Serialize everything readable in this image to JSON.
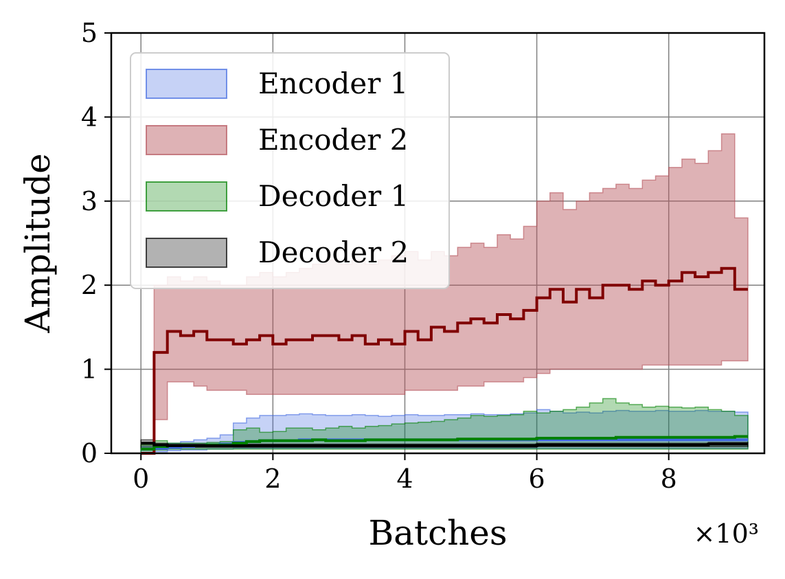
{
  "chart_data": {
    "type": "line",
    "title": "",
    "xlabel": "Batches",
    "ylabel": "Amplitude",
    "x_multiplier_label": "×10³",
    "xlim": [
      -0.45,
      9.45
    ],
    "ylim": [
      0,
      5
    ],
    "xticks": [
      0,
      2,
      4,
      6,
      8
    ],
    "xtick_labels": [
      "0",
      "2",
      "4",
      "6",
      "8"
    ],
    "yticks": [
      0,
      1,
      2,
      3,
      4,
      5
    ],
    "ytick_labels": [
      "0",
      "1",
      "2",
      "3",
      "4",
      "5"
    ],
    "grid": true,
    "legend_position": "top-left",
    "x": [
      0.0,
      0.2,
      0.4,
      0.6,
      0.8,
      1.0,
      1.2,
      1.4,
      1.6,
      1.8,
      2.0,
      2.2,
      2.4,
      2.6,
      2.8,
      3.0,
      3.2,
      3.4,
      3.6,
      3.8,
      4.0,
      4.2,
      4.4,
      4.6,
      4.8,
      5.0,
      5.2,
      5.4,
      5.6,
      5.8,
      6.0,
      6.2,
      6.4,
      6.6,
      6.8,
      7.0,
      7.2,
      7.4,
      7.6,
      7.8,
      8.0,
      8.2,
      8.4,
      8.6,
      8.8,
      9.0
    ],
    "series": [
      {
        "name": "Encoder 1",
        "color": "#4169e1",
        "fill_alpha": 0.3,
        "mean": [
          0.05,
          0.06,
          0.07,
          0.08,
          0.09,
          0.1,
          0.11,
          0.13,
          0.14,
          0.15,
          0.15,
          0.15,
          0.16,
          0.16,
          0.16,
          0.16,
          0.16,
          0.16,
          0.16,
          0.16,
          0.16,
          0.16,
          0.16,
          0.16,
          0.16,
          0.16,
          0.16,
          0.16,
          0.16,
          0.16,
          0.16,
          0.16,
          0.16,
          0.16,
          0.16,
          0.16,
          0.16,
          0.16,
          0.16,
          0.16,
          0.16,
          0.16,
          0.16,
          0.16,
          0.16,
          0.16
        ],
        "upper": [
          0.08,
          0.1,
          0.12,
          0.14,
          0.16,
          0.18,
          0.22,
          0.36,
          0.42,
          0.45,
          0.45,
          0.46,
          0.47,
          0.46,
          0.45,
          0.45,
          0.46,
          0.45,
          0.44,
          0.45,
          0.46,
          0.45,
          0.45,
          0.46,
          0.46,
          0.47,
          0.46,
          0.46,
          0.47,
          0.48,
          0.52,
          0.5,
          0.48,
          0.49,
          0.48,
          0.5,
          0.51,
          0.5,
          0.5,
          0.51,
          0.5,
          0.5,
          0.51,
          0.5,
          0.5,
          0.49
        ],
        "lower": [
          0.0,
          0.02,
          0.03,
          0.04,
          0.04,
          0.05,
          0.05,
          0.06,
          0.06,
          0.06,
          0.06,
          0.06,
          0.06,
          0.06,
          0.06,
          0.06,
          0.06,
          0.06,
          0.06,
          0.06,
          0.06,
          0.06,
          0.06,
          0.06,
          0.06,
          0.06,
          0.06,
          0.06,
          0.06,
          0.06,
          0.06,
          0.06,
          0.06,
          0.06,
          0.06,
          0.06,
          0.06,
          0.06,
          0.06,
          0.06,
          0.06,
          0.06,
          0.06,
          0.06,
          0.06,
          0.06
        ]
      },
      {
        "name": "Encoder 2",
        "color": "#800000",
        "fill_color": "#b5545c",
        "fill_alpha": 0.45,
        "mean": [
          0.0,
          1.2,
          1.45,
          1.4,
          1.45,
          1.35,
          1.35,
          1.3,
          1.35,
          1.4,
          1.3,
          1.35,
          1.35,
          1.4,
          1.4,
          1.35,
          1.4,
          1.3,
          1.35,
          1.3,
          1.45,
          1.35,
          1.5,
          1.45,
          1.55,
          1.6,
          1.55,
          1.65,
          1.6,
          1.7,
          1.85,
          1.95,
          1.8,
          1.95,
          1.85,
          2.0,
          2.0,
          1.95,
          2.05,
          2.0,
          2.05,
          2.15,
          2.1,
          2.15,
          2.2,
          1.95
        ],
        "upper": [
          0.0,
          2.0,
          2.1,
          2.05,
          2.1,
          2.05,
          2.0,
          2.0,
          2.1,
          2.15,
          2.1,
          2.15,
          2.2,
          2.25,
          2.3,
          2.25,
          2.3,
          2.25,
          2.3,
          2.35,
          2.4,
          2.3,
          2.4,
          2.35,
          2.45,
          2.5,
          2.45,
          2.6,
          2.55,
          2.7,
          3.0,
          3.1,
          2.9,
          3.0,
          3.1,
          3.15,
          3.2,
          3.15,
          3.25,
          3.3,
          3.4,
          3.5,
          3.45,
          3.6,
          3.8,
          2.8
        ],
        "lower": [
          0.0,
          0.4,
          0.85,
          0.85,
          0.8,
          0.75,
          0.75,
          0.75,
          0.7,
          0.7,
          0.7,
          0.7,
          0.7,
          0.7,
          0.7,
          0.7,
          0.7,
          0.7,
          0.7,
          0.7,
          0.75,
          0.75,
          0.75,
          0.75,
          0.8,
          0.8,
          0.85,
          0.85,
          0.85,
          0.9,
          0.95,
          1.0,
          1.0,
          1.0,
          1.0,
          1.0,
          1.0,
          1.0,
          1.05,
          1.05,
          1.05,
          1.05,
          1.05,
          1.05,
          1.1,
          1.1
        ]
      },
      {
        "name": "Decoder 1",
        "color": "#008000",
        "fill_alpha": 0.3,
        "mean": [
          0.05,
          0.08,
          0.09,
          0.09,
          0.09,
          0.1,
          0.1,
          0.12,
          0.14,
          0.15,
          0.15,
          0.15,
          0.15,
          0.16,
          0.15,
          0.15,
          0.15,
          0.16,
          0.16,
          0.16,
          0.16,
          0.16,
          0.16,
          0.16,
          0.17,
          0.17,
          0.17,
          0.17,
          0.17,
          0.17,
          0.18,
          0.18,
          0.18,
          0.18,
          0.18,
          0.18,
          0.19,
          0.19,
          0.19,
          0.19,
          0.19,
          0.19,
          0.19,
          0.19,
          0.19,
          0.2
        ],
        "upper": [
          0.1,
          0.15,
          0.12,
          0.12,
          0.12,
          0.13,
          0.14,
          0.28,
          0.3,
          0.25,
          0.26,
          0.3,
          0.3,
          0.28,
          0.3,
          0.32,
          0.3,
          0.32,
          0.33,
          0.35,
          0.36,
          0.37,
          0.38,
          0.4,
          0.42,
          0.45,
          0.44,
          0.45,
          0.46,
          0.5,
          0.48,
          0.5,
          0.52,
          0.55,
          0.6,
          0.65,
          0.6,
          0.58,
          0.55,
          0.56,
          0.55,
          0.54,
          0.55,
          0.52,
          0.5,
          0.45
        ],
        "lower": [
          0.0,
          0.04,
          0.05,
          0.05,
          0.05,
          0.05,
          0.05,
          0.05,
          0.05,
          0.05,
          0.05,
          0.05,
          0.05,
          0.05,
          0.05,
          0.05,
          0.05,
          0.05,
          0.05,
          0.05,
          0.05,
          0.05,
          0.05,
          0.05,
          0.05,
          0.05,
          0.05,
          0.05,
          0.05,
          0.05,
          0.05,
          0.05,
          0.05,
          0.05,
          0.05,
          0.05,
          0.05,
          0.05,
          0.05,
          0.05,
          0.05,
          0.05,
          0.05,
          0.05,
          0.05,
          0.05
        ]
      },
      {
        "name": "Decoder 2",
        "color": "#000000",
        "fill_alpha": 0.3,
        "mean": [
          0.12,
          0.1,
          0.09,
          0.09,
          0.09,
          0.09,
          0.09,
          0.09,
          0.09,
          0.09,
          0.09,
          0.09,
          0.09,
          0.09,
          0.09,
          0.09,
          0.09,
          0.09,
          0.09,
          0.09,
          0.09,
          0.09,
          0.09,
          0.09,
          0.09,
          0.09,
          0.09,
          0.09,
          0.09,
          0.09,
          0.1,
          0.1,
          0.1,
          0.1,
          0.1,
          0.1,
          0.1,
          0.1,
          0.1,
          0.1,
          0.1,
          0.1,
          0.1,
          0.11,
          0.11,
          0.11
        ],
        "upper": [
          0.16,
          0.12,
          0.11,
          0.11,
          0.11,
          0.11,
          0.11,
          0.11,
          0.11,
          0.11,
          0.11,
          0.11,
          0.11,
          0.11,
          0.11,
          0.11,
          0.11,
          0.11,
          0.11,
          0.11,
          0.11,
          0.11,
          0.11,
          0.11,
          0.11,
          0.11,
          0.11,
          0.11,
          0.11,
          0.11,
          0.12,
          0.12,
          0.12,
          0.12,
          0.12,
          0.12,
          0.12,
          0.12,
          0.12,
          0.12,
          0.12,
          0.12,
          0.12,
          0.13,
          0.13,
          0.13
        ],
        "lower": [
          0.05,
          0.07,
          0.07,
          0.07,
          0.07,
          0.07,
          0.07,
          0.07,
          0.07,
          0.07,
          0.07,
          0.07,
          0.07,
          0.07,
          0.07,
          0.07,
          0.07,
          0.07,
          0.07,
          0.07,
          0.07,
          0.07,
          0.07,
          0.07,
          0.07,
          0.07,
          0.07,
          0.07,
          0.07,
          0.07,
          0.08,
          0.08,
          0.08,
          0.08,
          0.08,
          0.08,
          0.08,
          0.08,
          0.08,
          0.08,
          0.08,
          0.08,
          0.08,
          0.08,
          0.08,
          0.08
        ]
      }
    ]
  }
}
